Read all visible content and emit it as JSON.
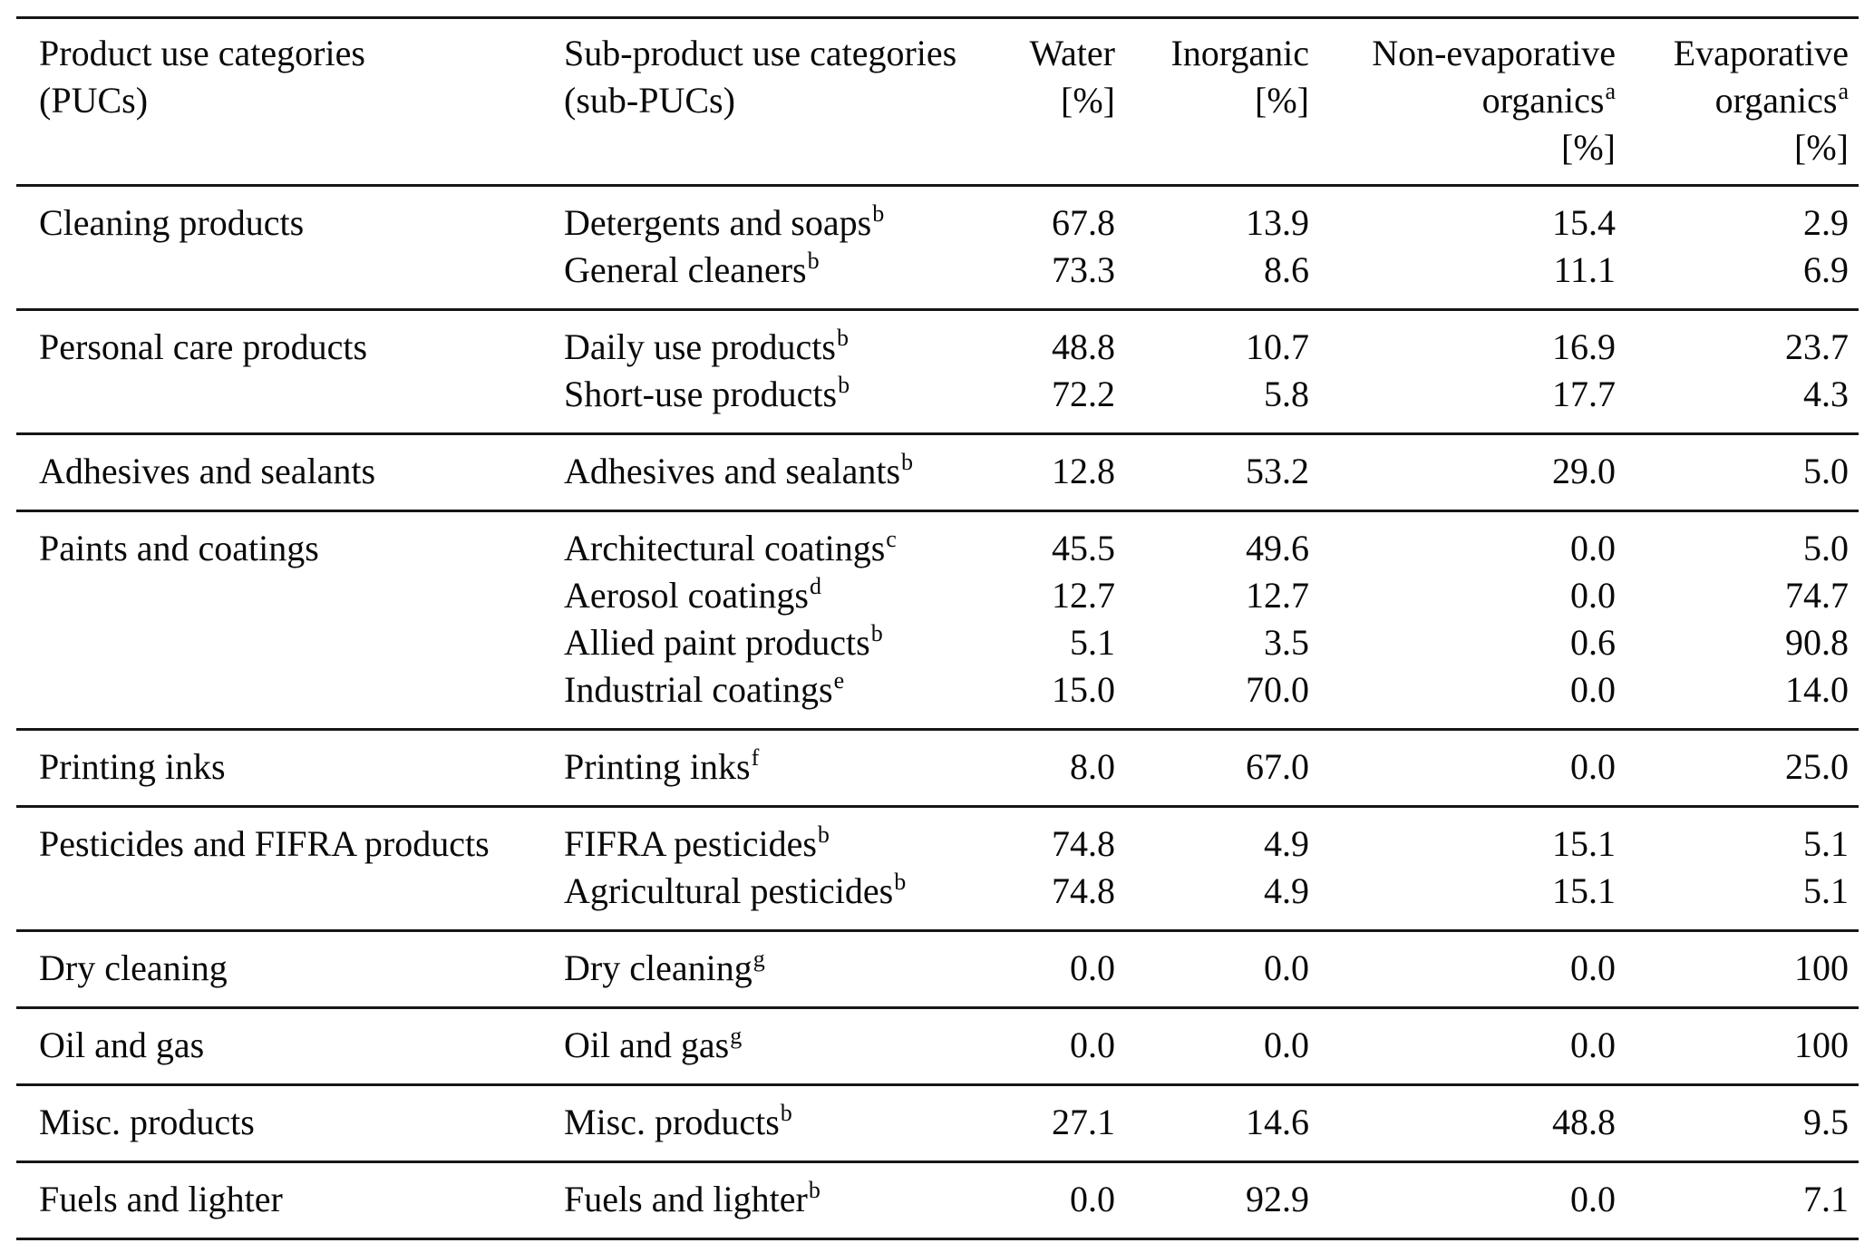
{
  "table": {
    "columns": {
      "puc": {
        "line1": "Product use categories",
        "line2": "(PUCs)"
      },
      "subpuc": {
        "line1": "Sub-product use categories",
        "line2": "(sub-PUCs)"
      },
      "water": {
        "label": "Water",
        "unit": "[%]"
      },
      "inorganic": {
        "label": "Inorganic",
        "unit": "[%]"
      },
      "nonevap": {
        "line1": "Non-evaporative",
        "line2": "organics",
        "sup": "a",
        "unit": "[%]"
      },
      "evap": {
        "line1": "Evaporative",
        "line2": "organics",
        "sup": "a",
        "unit": "[%]"
      }
    },
    "groups": [
      {
        "puc": "Cleaning products",
        "rows": [
          {
            "sub": "Detergents and soaps",
            "note": "b",
            "water": "67.8",
            "inorganic": "13.9",
            "nonevap": "15.4",
            "evap": "2.9"
          },
          {
            "sub": "General cleaners",
            "note": "b",
            "water": "73.3",
            "inorganic": "8.6",
            "nonevap": "11.1",
            "evap": "6.9"
          }
        ]
      },
      {
        "puc": "Personal care products",
        "rows": [
          {
            "sub": "Daily use products",
            "note": "b",
            "water": "48.8",
            "inorganic": "10.7",
            "nonevap": "16.9",
            "evap": "23.7"
          },
          {
            "sub": "Short-use products",
            "note": "b",
            "water": "72.2",
            "inorganic": "5.8",
            "nonevap": "17.7",
            "evap": "4.3"
          }
        ]
      },
      {
        "puc": "Adhesives and sealants",
        "rows": [
          {
            "sub": "Adhesives and sealants",
            "note": "b",
            "water": "12.8",
            "inorganic": "53.2",
            "nonevap": "29.0",
            "evap": "5.0"
          }
        ]
      },
      {
        "puc": "Paints and coatings",
        "rows": [
          {
            "sub": "Architectural coatings",
            "note": "c",
            "water": "45.5",
            "inorganic": "49.6",
            "nonevap": "0.0",
            "evap": "5.0"
          },
          {
            "sub": "Aerosol coatings",
            "note": "d",
            "water": "12.7",
            "inorganic": "12.7",
            "nonevap": "0.0",
            "evap": "74.7"
          },
          {
            "sub": "Allied paint products",
            "note": "b",
            "water": "5.1",
            "inorganic": "3.5",
            "nonevap": "0.6",
            "evap": "90.8"
          },
          {
            "sub": "Industrial coatings",
            "note": "e",
            "water": "15.0",
            "inorganic": "70.0",
            "nonevap": "0.0",
            "evap": "14.0"
          }
        ]
      },
      {
        "puc": "Printing inks",
        "rows": [
          {
            "sub": "Printing inks",
            "note": "f",
            "water": "8.0",
            "inorganic": "67.0",
            "nonevap": "0.0",
            "evap": "25.0"
          }
        ]
      },
      {
        "puc": "Pesticides and FIFRA products",
        "rows": [
          {
            "sub": "FIFRA pesticides",
            "note": "b",
            "water": "74.8",
            "inorganic": "4.9",
            "nonevap": "15.1",
            "evap": "5.1"
          },
          {
            "sub": "Agricultural pesticides",
            "note": "b",
            "water": "74.8",
            "inorganic": "4.9",
            "nonevap": "15.1",
            "evap": "5.1"
          }
        ]
      },
      {
        "puc": "Dry cleaning",
        "rows": [
          {
            "sub": "Dry cleaning",
            "note": "g",
            "water": "0.0",
            "inorganic": "0.0",
            "nonevap": "0.0",
            "evap": "100"
          }
        ]
      },
      {
        "puc": "Oil and gas",
        "rows": [
          {
            "sub": "Oil and gas",
            "note": "g",
            "water": "0.0",
            "inorganic": "0.0",
            "nonevap": "0.0",
            "evap": "100"
          }
        ]
      },
      {
        "puc": "Misc. products",
        "rows": [
          {
            "sub": "Misc. products",
            "note": "b",
            "water": "27.1",
            "inorganic": "14.6",
            "nonevap": "48.8",
            "evap": "9.5"
          }
        ]
      },
      {
        "puc": "Fuels and lighter",
        "rows": [
          {
            "sub": "Fuels and lighter",
            "note": "b",
            "water": "0.0",
            "inorganic": "92.9",
            "nonevap": "0.0",
            "evap": "7.1"
          }
        ]
      }
    ]
  }
}
